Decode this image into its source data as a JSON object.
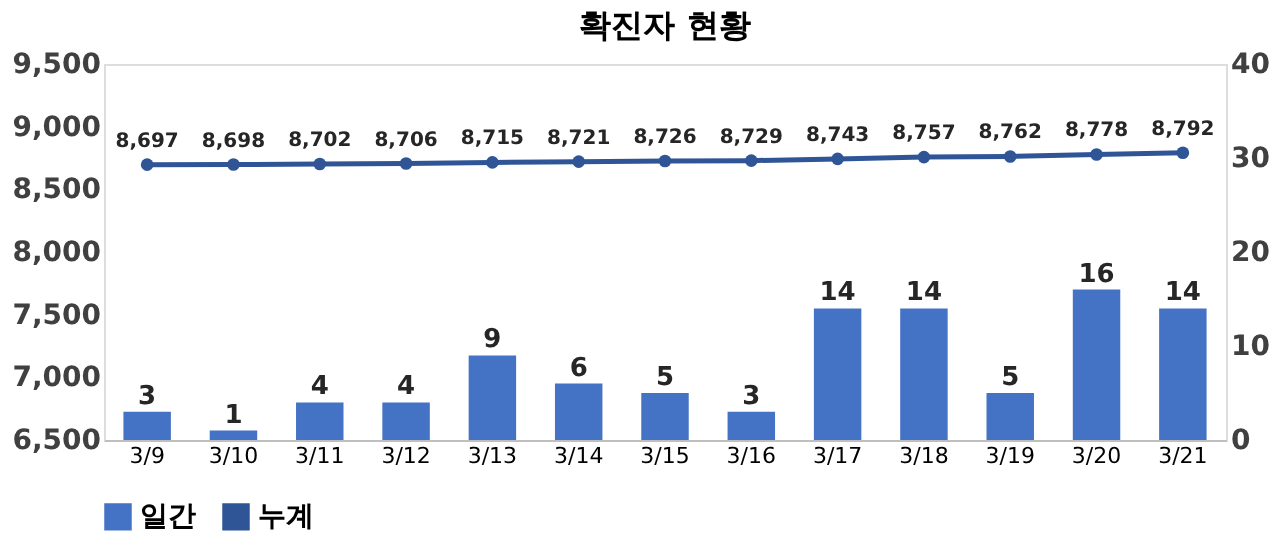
{
  "chart_data": {
    "type": "bar",
    "title": "확진자 현황",
    "categories": [
      "3/9",
      "3/10",
      "3/11",
      "3/12",
      "3/13",
      "3/14",
      "3/15",
      "3/16",
      "3/17",
      "3/18",
      "3/19",
      "3/20",
      "3/21"
    ],
    "series": [
      {
        "name": "일간",
        "axis": "y2",
        "color": "#4472c4",
        "values": [
          3,
          1,
          4,
          4,
          9,
          6,
          5,
          3,
          14,
          14,
          5,
          16,
          14
        ]
      },
      {
        "name": "누계",
        "type": "line",
        "color": "#2f5597",
        "values": [
          8697,
          8698,
          8702,
          8706,
          8715,
          8721,
          8726,
          8729,
          8743,
          8757,
          8762,
          8778,
          8792
        ],
        "value_labels": [
          "8,697",
          "8,698",
          "8,702",
          "8,706",
          "8,715",
          "8,721",
          "8,726",
          "8,729",
          "8,743",
          "8,757",
          "8,762",
          "8,778",
          "8,792"
        ]
      }
    ],
    "ylim": [
      6500,
      9500
    ],
    "yticks": [
      {
        "value": 6500,
        "label": "6,500"
      },
      {
        "value": 7000,
        "label": "7,000"
      },
      {
        "value": 7500,
        "label": "7,500"
      },
      {
        "value": 8000,
        "label": "8,000"
      },
      {
        "value": 8500,
        "label": "8,500"
      },
      {
        "value": 9000,
        "label": "9,000"
      },
      {
        "value": 9500,
        "label": "9,500"
      }
    ],
    "y2lim": [
      0,
      40
    ],
    "y2ticks": [
      0,
      10,
      20,
      30,
      40
    ],
    "data_labels": true,
    "legend": "bottom",
    "marker": "circle",
    "grid": false
  }
}
